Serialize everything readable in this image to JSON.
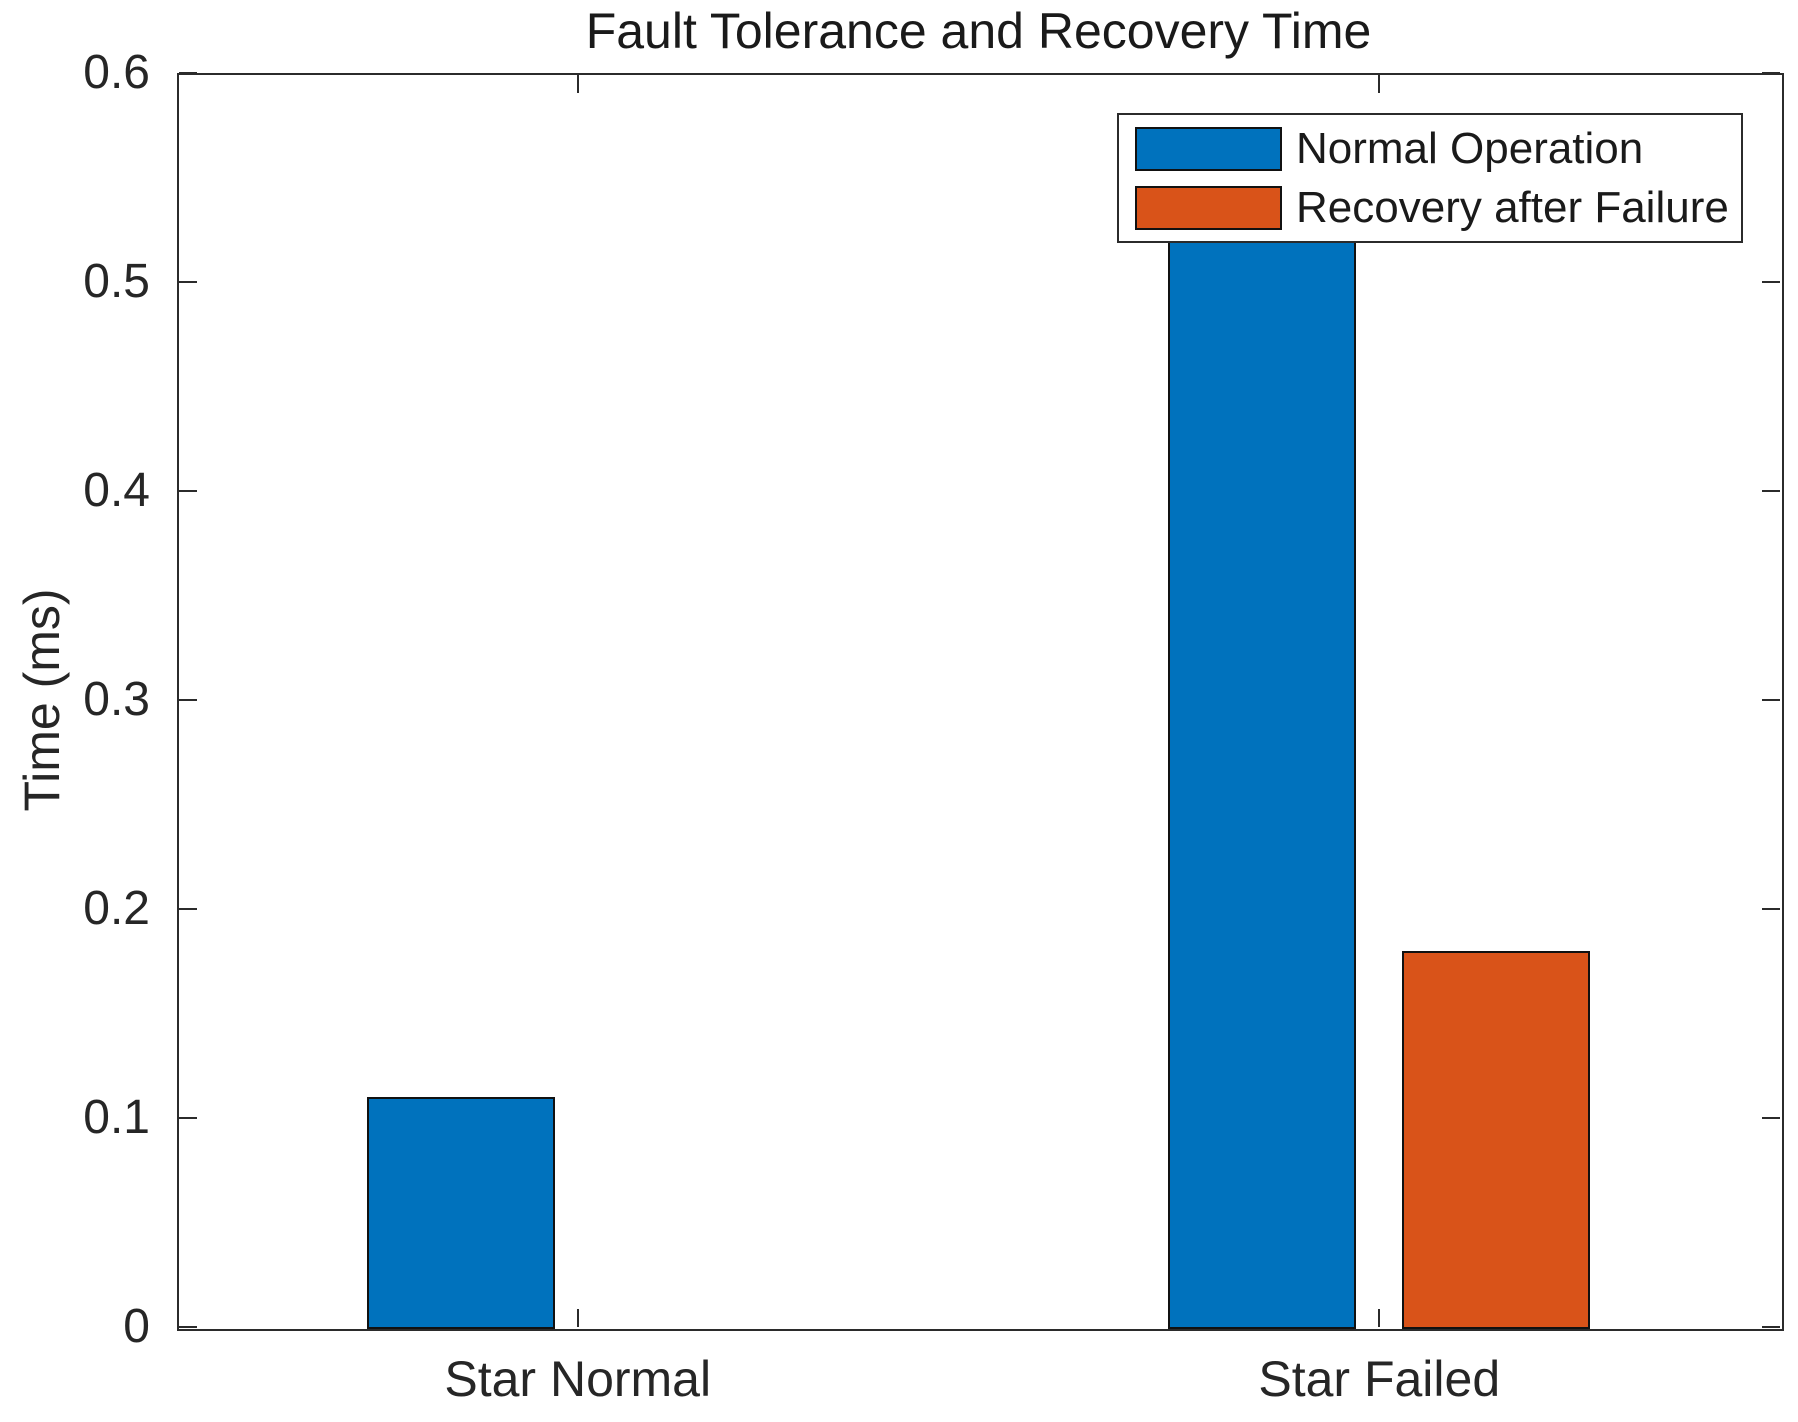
{
  "chart_data": {
    "type": "bar",
    "title": "Fault Tolerance and Recovery Time",
    "xlabel": "",
    "ylabel": "Time (ms)",
    "categories": [
      "Star Normal",
      "Star Failed"
    ],
    "series": [
      {
        "name": "Normal Operation",
        "color": "#0072BD",
        "values": [
          0.11,
          0.55
        ]
      },
      {
        "name": "Recovery after Failure",
        "color": "#D95319",
        "values": [
          0,
          0.18
        ]
      }
    ],
    "ylim": [
      0,
      0.6
    ],
    "yticks": [
      "0",
      "0.1",
      "0.2",
      "0.3",
      "0.4",
      "0.5",
      "0.6"
    ],
    "grid": false,
    "legend_position": "top-right"
  }
}
